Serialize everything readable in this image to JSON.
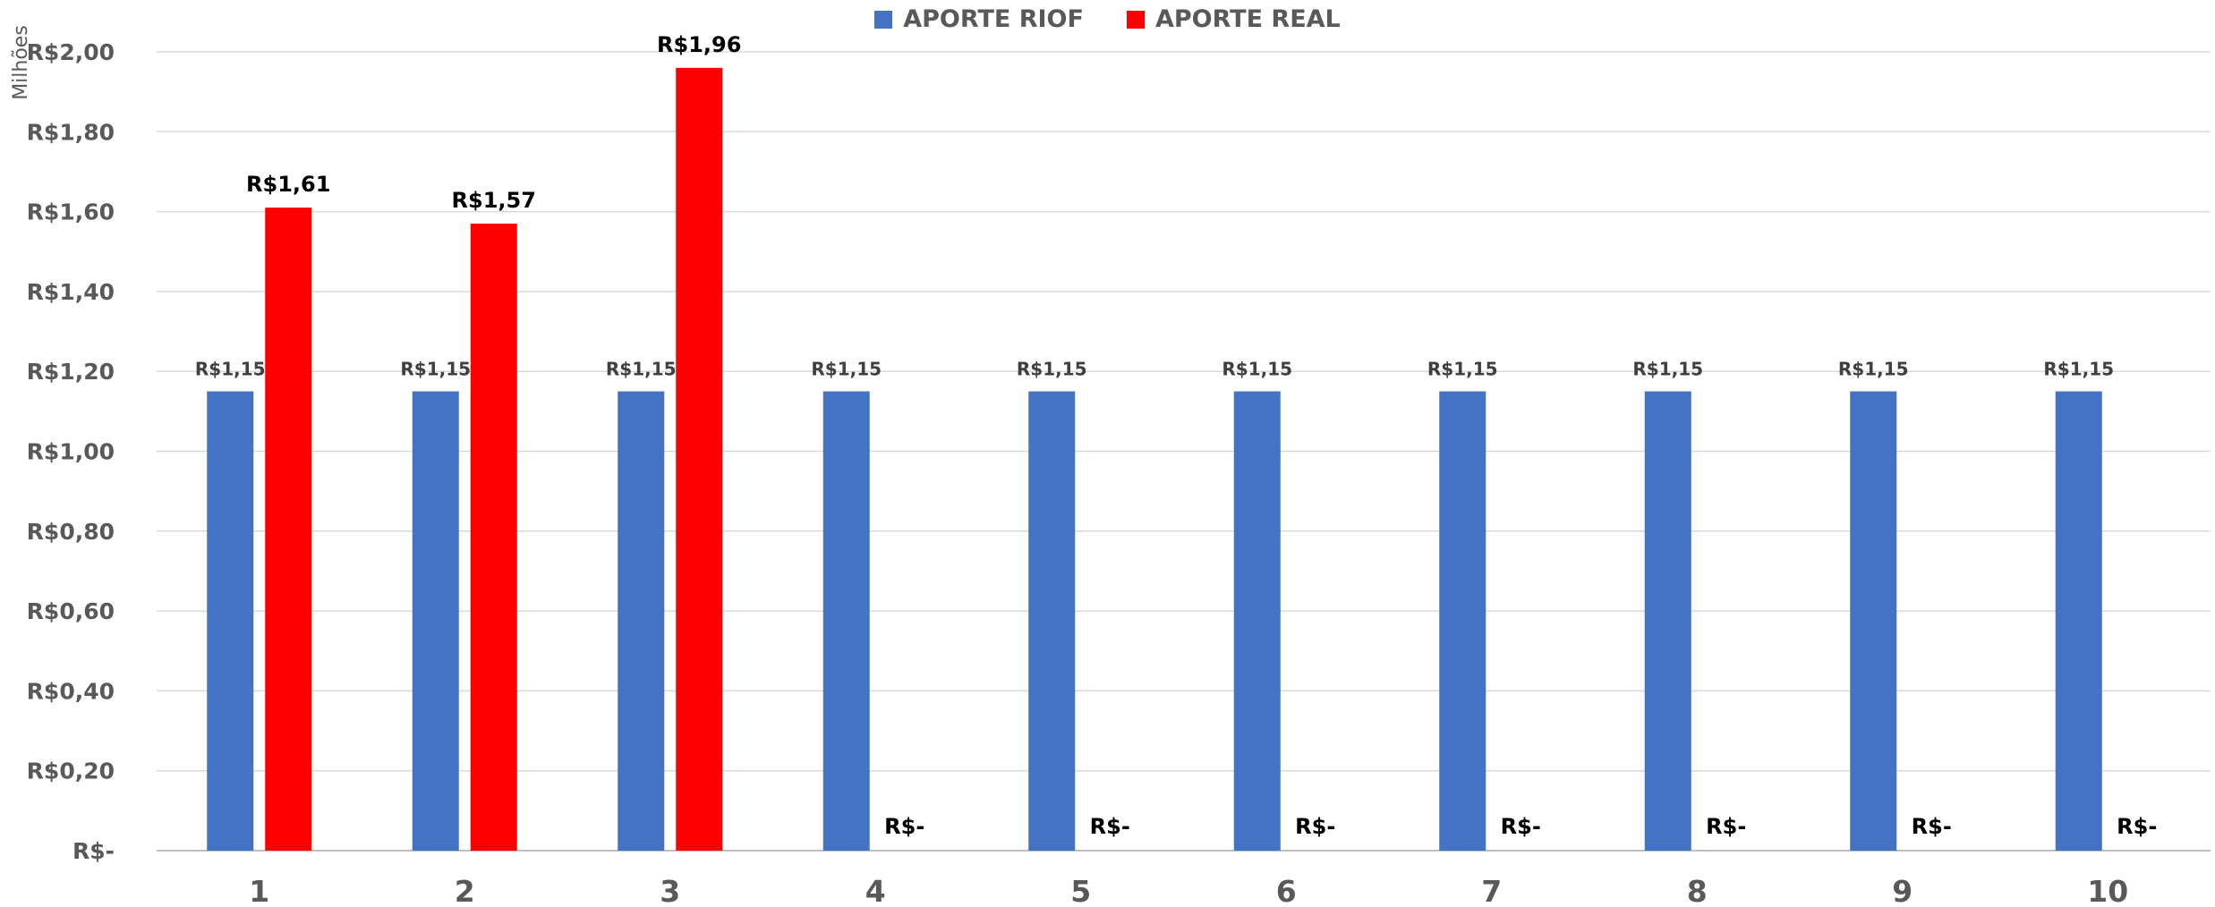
{
  "chart_data": {
    "type": "bar",
    "ylabel": "Milhões",
    "categories": [
      "1",
      "2",
      "3",
      "4",
      "5",
      "6",
      "7",
      "8",
      "9",
      "10"
    ],
    "ylim": [
      0,
      2.0
    ],
    "yticks": [
      0,
      0.2,
      0.4,
      0.6,
      0.8,
      1.0,
      1.2,
      1.4,
      1.6,
      1.8,
      2.0
    ],
    "ytick_labels": [
      "R$-",
      "R$0,20",
      "R$0,40",
      "R$0,60",
      "R$0,80",
      "R$1,00",
      "R$1,20",
      "R$1,40",
      "R$1,60",
      "R$1,80",
      "R$2,00"
    ],
    "grid": true,
    "legend_position": "top-center",
    "series": [
      {
        "name": "APORTE RIOF",
        "color": "#4472C4",
        "values": [
          1.15,
          1.15,
          1.15,
          1.15,
          1.15,
          1.15,
          1.15,
          1.15,
          1.15,
          1.15
        ],
        "labels": [
          "R$1,15",
          "R$1,15",
          "R$1,15",
          "R$1,15",
          "R$1,15",
          "R$1,15",
          "R$1,15",
          "R$1,15",
          "R$1,15",
          "R$1,15"
        ]
      },
      {
        "name": "APORTE REAL",
        "color": "#FF0000",
        "values": [
          1.61,
          1.57,
          1.96,
          0,
          0,
          0,
          0,
          0,
          0,
          0
        ],
        "labels": [
          "R$1,61",
          "R$1,57",
          "R$1,96",
          "R$-",
          "R$-",
          "R$-",
          "R$-",
          "R$-",
          "R$-",
          "R$-"
        ]
      }
    ]
  }
}
